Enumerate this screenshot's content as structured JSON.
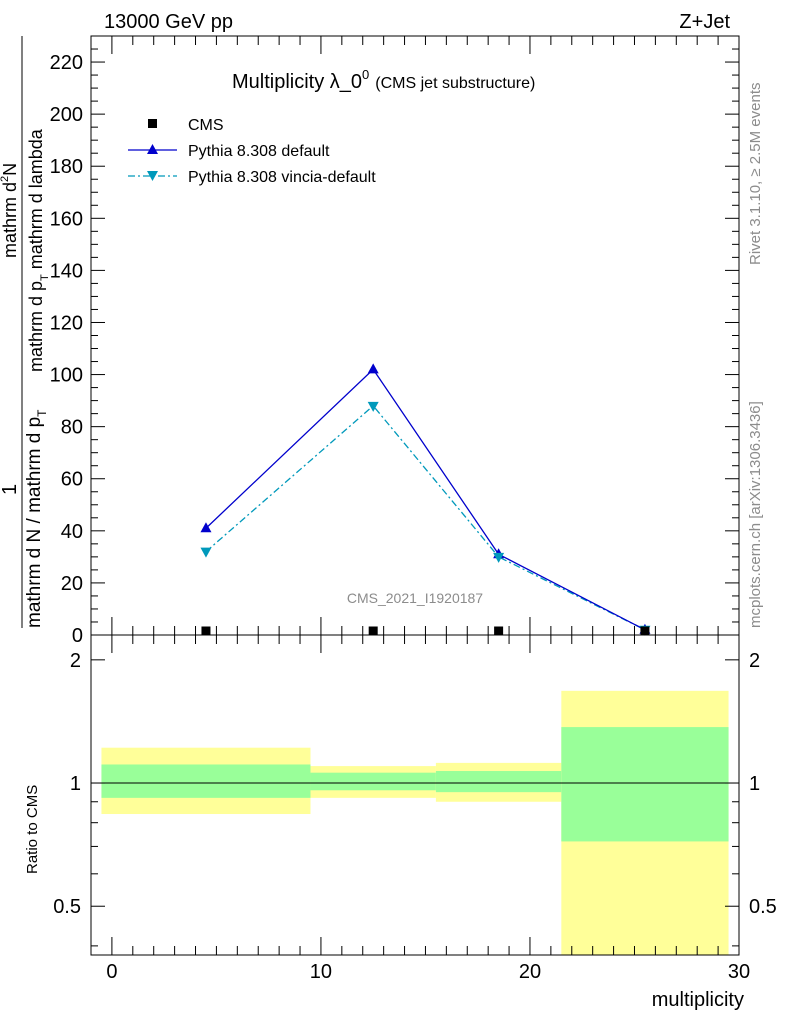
{
  "header": {
    "left": "13000 GeV pp",
    "right": "Z+Jet"
  },
  "side_labels": {
    "rivet": "Rivet 3.1.10, ≥ 2.5M events",
    "mcplots": "mcplots.cern.ch [arXiv:1306.3436]"
  },
  "watermark": "CMS_2021_I1920187",
  "colors": {
    "cms": "#000000",
    "pythia_default": "#0000cc",
    "pythia_vincia": "#0099bb",
    "band_inner": "#99ff99",
    "band_outer": "#ffff99"
  },
  "chart_data": [
    {
      "type": "line",
      "title_main": "Multiplicity λ_0",
      "title_sup": "0",
      "title_sub": "(CMS jet substructure)",
      "ylabel": {
        "numerator": "1",
        "denominator": "mathrm d N / mathrm d p",
        "denominator_sub": "T",
        "numerator_deriv_top": "mathrm d",
        "numerator_deriv_top_sup": "2",
        "numerator_deriv_top_end": "N",
        "numerator_deriv_bottom": "mathrm d p",
        "numerator_deriv_bottom_sub": "T",
        "numerator_deriv_bottom_end": " mathrm d lambda"
      },
      "xlim": [
        -1,
        30
      ],
      "ylim": [
        0,
        230
      ],
      "y_ticks": [
        "0",
        "20",
        "40",
        "60",
        "80",
        "100",
        "120",
        "140",
        "160",
        "180",
        "200",
        "220"
      ],
      "y_tick_values": [
        0,
        20,
        40,
        60,
        80,
        100,
        120,
        140,
        160,
        180,
        200,
        220
      ],
      "legend_placement": "top-left",
      "series": [
        {
          "name": "CMS",
          "marker": "square",
          "x": [
            4.5,
            12.5,
            18.5,
            25.5
          ],
          "y": [
            0.5,
            0.5,
            0.3,
            0.05
          ]
        },
        {
          "name": "Pythia 8.308 default",
          "marker": "triangle-up",
          "line": "solid",
          "x": [
            4.5,
            12.5,
            18.5,
            25.5
          ],
          "y": [
            41,
            102,
            31,
            2
          ]
        },
        {
          "name": "Pythia 8.308 vincia-default",
          "marker": "triangle-down",
          "line": "dash-dot",
          "x": [
            4.5,
            12.5,
            18.5,
            25.5
          ],
          "y": [
            32,
            88,
            30,
            2
          ]
        }
      ]
    },
    {
      "type": "area",
      "ylabel": "Ratio to CMS",
      "xlabel": "multiplicity",
      "xlim": [
        -1,
        30
      ],
      "ylim": [
        0.38,
        2.3
      ],
      "log_scale_y": true,
      "x_ticks": [
        "0",
        "10",
        "20",
        "30"
      ],
      "x_tick_values": [
        0,
        10,
        20,
        30
      ],
      "y_ticks": [
        "0.5",
        "1",
        "2"
      ],
      "y_tick_values": [
        0.5,
        1,
        2
      ],
      "reference_line": 1,
      "bands": [
        {
          "x_range": [
            -0.5,
            9.5
          ],
          "inner": [
            0.92,
            1.11
          ],
          "outer": [
            0.84,
            1.22
          ]
        },
        {
          "x_range": [
            9.5,
            15.5
          ],
          "inner": [
            0.96,
            1.06
          ],
          "outer": [
            0.92,
            1.1
          ]
        },
        {
          "x_range": [
            15.5,
            21.5
          ],
          "inner": [
            0.95,
            1.07
          ],
          "outer": [
            0.9,
            1.12
          ]
        },
        {
          "x_range": [
            21.5,
            29.5
          ],
          "inner": [
            0.72,
            1.37
          ],
          "outer": [
            0.38,
            1.68
          ]
        }
      ]
    }
  ]
}
